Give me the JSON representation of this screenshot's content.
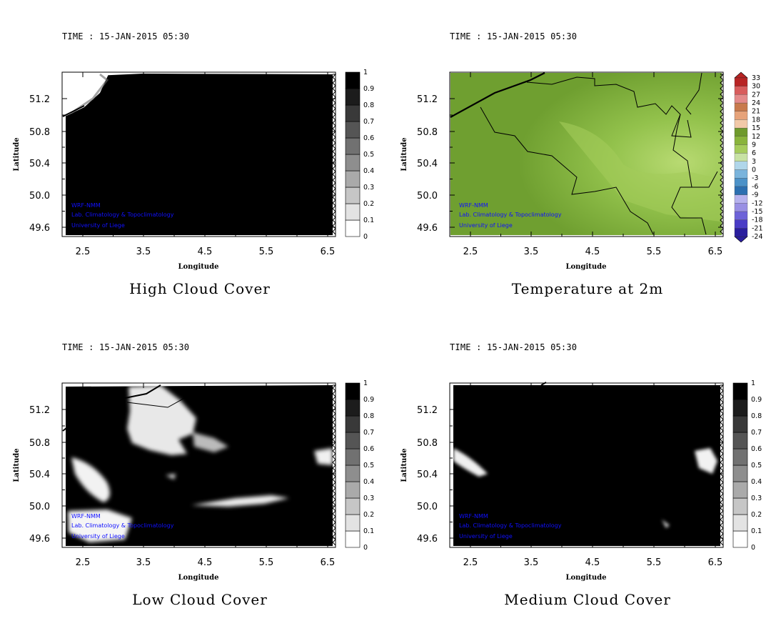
{
  "panels": [
    {
      "id": "high",
      "time": "TIME : 15-JAN-2015 05:30",
      "title": "High Cloud Cover",
      "colorbar": [
        "0",
        "0.1",
        "0.2",
        "0.3",
        "0.4",
        "0.5",
        "0.6",
        "0.7",
        "0.8",
        "0.9",
        "1"
      ]
    },
    {
      "id": "temp",
      "time": "TIME : 15-JAN-2015 05:30",
      "title": "Temperature at 2m",
      "colorbar": [
        "-24",
        "-21",
        "-18",
        "-15",
        "-12",
        "-9",
        "-6",
        "-3",
        "0",
        "3",
        "6",
        "9",
        "12",
        "15",
        "18",
        "21",
        "24",
        "27",
        "30",
        "33"
      ]
    },
    {
      "id": "low",
      "time": "TIME : 15-JAN-2015 05:30",
      "title": "Low Cloud Cover",
      "colorbar": [
        "0",
        "0.1",
        "0.2",
        "0.3",
        "0.4",
        "0.5",
        "0.6",
        "0.7",
        "0.8",
        "0.9",
        "1"
      ]
    },
    {
      "id": "medium",
      "time": "TIME : 15-JAN-2015 05:30",
      "title": "Medium Cloud Cover",
      "colorbar": [
        "0",
        "0.1",
        "0.2",
        "0.3",
        "0.4",
        "0.5",
        "0.6",
        "0.7",
        "0.8",
        "0.9",
        "1"
      ]
    }
  ],
  "axes": {
    "xlabel": "Longitude",
    "ylabel": "Latitude",
    "xticks": [
      "2.5",
      "3.5",
      "4.5",
      "5.5",
      "6.5"
    ],
    "yticks": [
      "51.2",
      "50.8",
      "50.4",
      "50.0",
      "49.6"
    ]
  },
  "credits": [
    "WRF-NMM",
    "Lab. Climatology & Topoclimatology",
    "University of Liege"
  ],
  "colors": {
    "cloud_full": "#000000",
    "cloud_clear": "#ffffff",
    "temp_field": "#7fae3a",
    "temp_field_light": "#a6cf5c",
    "credit_text": "#1010ff"
  }
}
